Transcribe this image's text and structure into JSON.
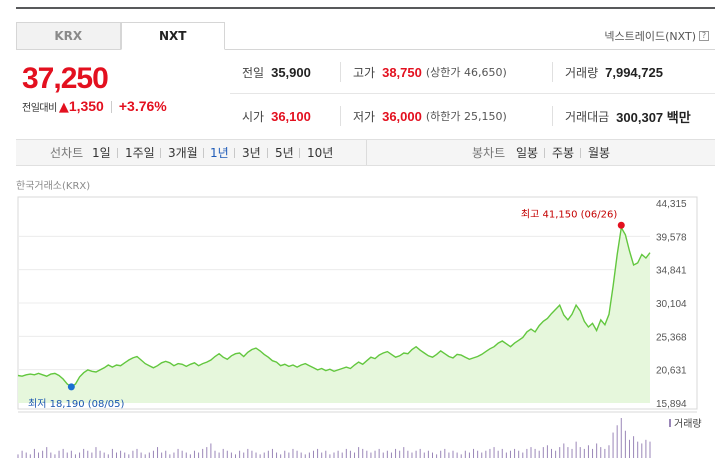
{
  "tabs": [
    {
      "label": "KRX",
      "active": false
    },
    {
      "label": "NXT",
      "active": true
    }
  ],
  "nxt_link": "넥스트레이드(NXT)",
  "price": {
    "current": "37,250",
    "change_label": "전일대비",
    "change_arrow": "▲",
    "change_amount": "1,350",
    "change_pct": "+3.76%"
  },
  "stats": {
    "prev_close": {
      "label": "전일",
      "value": "35,900"
    },
    "high": {
      "label": "고가",
      "value": "38,750",
      "sub": "(상한가 46,650)"
    },
    "volume": {
      "label": "거래량",
      "value": "7,994,725"
    },
    "open": {
      "label": "시가",
      "value": "36,100"
    },
    "low": {
      "label": "저가",
      "value": "36,000",
      "sub": "(하한가 25,150)"
    },
    "trade_value": {
      "label": "거래대금",
      "value": "300,307 백만"
    }
  },
  "toolbar": {
    "line_label": "선차트",
    "periods": [
      "1일",
      "1주일",
      "3개월",
      "1년",
      "3년",
      "5년",
      "10년"
    ],
    "active_period": "1년",
    "candle_label": "봉차트",
    "candle_periods": [
      "일봉",
      "주봉",
      "월봉"
    ]
  },
  "exchange_label": "한국거래소(KRX)",
  "colors": {
    "up": "#e3101f",
    "active": "#1e5bb8",
    "line": "#63c73f",
    "fill": "#e6f7dc",
    "low_marker": "#1a6fd1",
    "volume": "#9a86b8"
  },
  "chart_data": {
    "type": "area",
    "y_ticks": [
      "44,315",
      "39,578",
      "34,841",
      "30,104",
      "25,368",
      "20,631",
      "15,894"
    ],
    "ylim": [
      15894,
      44315
    ],
    "grid": true,
    "high_annotation": "최고 41,150 (06/26)",
    "low_annotation": "최저 18,190 (08/05)",
    "high_value": 41150,
    "low_value": 18190,
    "volume_legend": "거래량",
    "values": [
      19800,
      19700,
      19900,
      20000,
      19900,
      20100,
      19900,
      19700,
      20000,
      20100,
      19800,
      19300,
      18600,
      18190,
      18600,
      19600,
      20200,
      20600,
      20400,
      20300,
      20600,
      20900,
      21300,
      21000,
      21300,
      21200,
      21600,
      22000,
      22300,
      22500,
      22000,
      21500,
      21200,
      20900,
      21200,
      21600,
      21800,
      21600,
      21200,
      21500,
      21400,
      21100,
      21400,
      21600,
      21200,
      21500,
      21700,
      22000,
      22500,
      22900,
      22400,
      22100,
      22600,
      22900,
      23000,
      22500,
      23100,
      23500,
      23700,
      23300,
      22800,
      22400,
      21900,
      21700,
      21200,
      21400,
      21100,
      21300,
      21000,
      21300,
      21500,
      21200,
      20900,
      20600,
      20800,
      20500,
      20700,
      20400,
      20600,
      20800,
      21000,
      20800,
      21300,
      21700,
      21400,
      21900,
      22400,
      22200,
      22700,
      23000,
      23200,
      22800,
      22400,
      22600,
      23000,
      22900,
      23500,
      23900,
      23400,
      23000,
      22600,
      22400,
      22800,
      23300,
      22900,
      22500,
      22300,
      22800,
      22700,
      22400,
      22100,
      22300,
      22500,
      22800,
      23200,
      23600,
      23900,
      24400,
      24700,
      24300,
      23900,
      24400,
      24800,
      25200,
      26000,
      26400,
      26000,
      26900,
      27500,
      27900,
      28600,
      29200,
      29800,
      28400,
      27700,
      28500,
      29800,
      29000,
      27500,
      26700,
      27200,
      26200,
      27700,
      27000,
      28500,
      32500,
      37000,
      40800,
      39800,
      37500,
      35500,
      35800,
      37000,
      36500,
      37250
    ],
    "volume": [
      2,
      4,
      3,
      2,
      5,
      3,
      4,
      6,
      3,
      2,
      4,
      5,
      3,
      4,
      2,
      3,
      5,
      4,
      3,
      6,
      4,
      3,
      2,
      5,
      3,
      4,
      3,
      2,
      4,
      5,
      3,
      2,
      3,
      4,
      6,
      3,
      4,
      2,
      3,
      5,
      4,
      3,
      2,
      4,
      3,
      5,
      6,
      8,
      4,
      3,
      5,
      4,
      3,
      2,
      4,
      3,
      5,
      4,
      3,
      2,
      3,
      4,
      5,
      3,
      2,
      4,
      3,
      5,
      4,
      3,
      2,
      3,
      4,
      5,
      3,
      4,
      2,
      3,
      4,
      3,
      5,
      4,
      3,
      6,
      5,
      4,
      3,
      4,
      5,
      3,
      4,
      3,
      5,
      4,
      6,
      4,
      3,
      4,
      5,
      3,
      4,
      3,
      2,
      4,
      5,
      3,
      4,
      3,
      2,
      4,
      3,
      5,
      4,
      3,
      4,
      5,
      6,
      4,
      5,
      3,
      4,
      5,
      4,
      3,
      5,
      6,
      5,
      4,
      6,
      7,
      5,
      4,
      6,
      8,
      6,
      5,
      9,
      6,
      5,
      7,
      5,
      8,
      6,
      5,
      7,
      14,
      18,
      22,
      15,
      10,
      12,
      9,
      8,
      10,
      9
    ]
  }
}
